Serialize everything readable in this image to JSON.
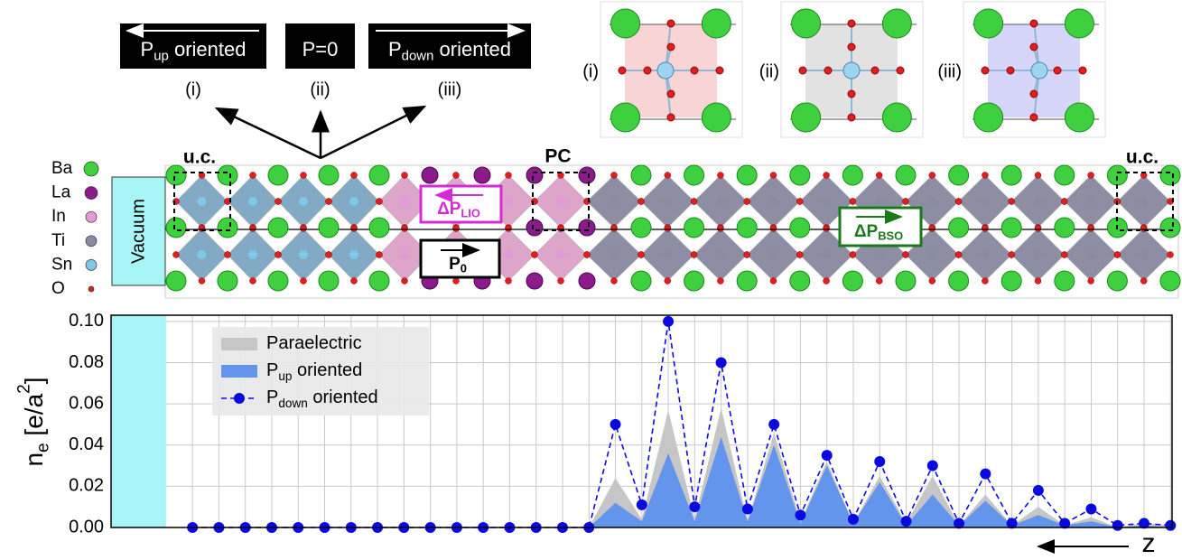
{
  "polarization_states": [
    {
      "label": [
        "P",
        "up",
        " oriented"
      ],
      "index": "(i)"
    },
    {
      "label": [
        "P=0"
      ],
      "index": "(ii)"
    },
    {
      "label": [
        "P",
        "down",
        " oriented"
      ],
      "index": "(iii)"
    }
  ],
  "insets": [
    "(i)",
    "(ii)",
    "(iii)"
  ],
  "species": [
    "Ba",
    "La",
    "In",
    "Ti",
    "Sn",
    "O"
  ],
  "structure": {
    "vacuum": "Vacuum",
    "unit_cell_labels": [
      "u.c.",
      "u.c."
    ],
    "pc_label": "PC",
    "delta_p_lio": [
      "ΔP",
      "LIO"
    ],
    "p0": [
      "P",
      "0"
    ],
    "delta_p_bso": [
      "ΔP",
      "BSO"
    ]
  },
  "chart_data": {
    "type": "line",
    "y_label": [
      "n",
      "e",
      " [e/a",
      "2",
      "]"
    ],
    "x": [
      1,
      2,
      3,
      4,
      5,
      6,
      7,
      8,
      9,
      10,
      11,
      12,
      13,
      14,
      15,
      16,
      17,
      18,
      19,
      20,
      21,
      22,
      23,
      24,
      25,
      26,
      27,
      28,
      29,
      30,
      31,
      32,
      33,
      34,
      35,
      36,
      37,
      38
    ],
    "xlim": [
      -2.08,
      38.06
    ],
    "ylim": [
      0,
      0.103
    ],
    "yticks": [
      {
        "value": 0,
        "label": "0.00"
      },
      {
        "value": 0.02,
        "label": "0.02"
      },
      {
        "value": 0.04,
        "label": "0.04"
      },
      {
        "value": 0.06,
        "label": "0.06"
      },
      {
        "value": 0.08,
        "label": "0.08"
      },
      {
        "value": 0.1,
        "label": "0.10"
      }
    ],
    "grid": true,
    "series": [
      {
        "name": [
          "Paraelectric"
        ],
        "style": "area",
        "color": "#c6c6c6",
        "values": [
          0,
          0,
          0,
          0,
          0,
          0,
          0,
          0,
          0,
          0,
          0,
          0,
          0,
          0,
          0,
          0,
          0.024,
          0.004,
          0.057,
          0.004,
          0.058,
          0.003,
          0.046,
          0.003,
          0.032,
          0.002,
          0.025,
          0.002,
          0.025,
          0.001,
          0.016,
          0.001,
          0.01,
          0.001,
          0.005,
          0,
          0.002,
          0.001
        ]
      },
      {
        "name": [
          "P",
          "up",
          " oriented"
        ],
        "style": "area",
        "color": "#6495ed",
        "values": [
          0,
          0,
          0,
          0,
          0,
          0,
          0,
          0,
          0,
          0,
          0,
          0,
          0,
          0,
          0,
          0,
          0.012,
          0.003,
          0.036,
          0.003,
          0.044,
          0.003,
          0.04,
          0.002,
          0.03,
          0.002,
          0.022,
          0.001,
          0.016,
          0.001,
          0.013,
          0.001,
          0.006,
          0.001,
          0.003,
          0,
          0.001,
          0
        ]
      },
      {
        "name": [
          "P",
          "down",
          " oriented"
        ],
        "style": "line",
        "color": "#0a0ae0",
        "values": [
          0,
          0,
          0,
          0,
          0,
          0,
          0,
          0,
          0,
          0,
          0,
          0,
          0,
          0,
          0,
          0,
          0.05,
          0.011,
          0.1,
          0.01,
          0.08,
          0.009,
          0.05,
          0.006,
          0.035,
          0.004,
          0.032,
          0.003,
          0.03,
          0.002,
          0.026,
          0.002,
          0.018,
          0.002,
          0.009,
          0.001,
          0.002,
          0.001
        ]
      }
    ]
  },
  "z_label": "z"
}
